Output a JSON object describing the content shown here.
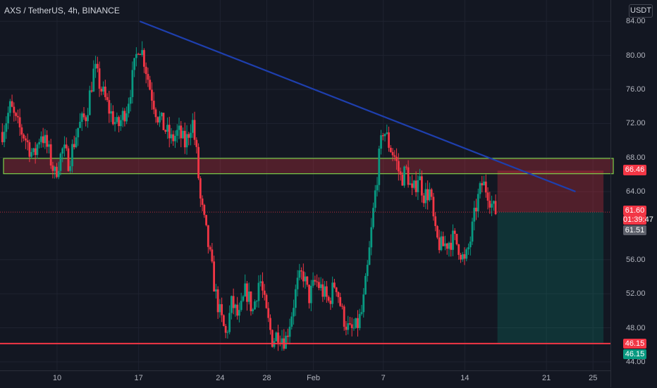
{
  "header": {
    "title": "AXS / TetherUS, 4h, BINANCE",
    "currency_badge": "USDT"
  },
  "chart_data": {
    "type": "candlestick",
    "symbol": "AXS / TetherUS",
    "timeframe": "4h",
    "exchange": "BINANCE",
    "y_ticks": [
      44,
      48,
      52,
      56,
      64,
      68,
      72,
      76,
      80,
      84
    ],
    "y_tick_labels": [
      "44.00",
      "48.00",
      "52.00",
      "56.00",
      "64.00",
      "68.00",
      "72.00",
      "76.00",
      "80.00",
      "84.00"
    ],
    "ylim": [
      43,
      86.5
    ],
    "x_ticks": [
      {
        "label": "10",
        "day": 10
      },
      {
        "label": "17",
        "day": 17
      },
      {
        "label": "24",
        "day": 24
      },
      {
        "label": "28",
        "day": 28
      },
      {
        "label": "Feb",
        "day": 32
      },
      {
        "label": "7",
        "day": 38
      },
      {
        "label": "14",
        "day": 45
      },
      {
        "label": "21",
        "day": 52
      },
      {
        "label": "25",
        "day": 56
      }
    ],
    "xlim": [
      5.1,
      57.5
    ],
    "price_path": [
      [
        5.3,
        71.0
      ],
      [
        6.0,
        74.0
      ],
      [
        6.5,
        72.0
      ],
      [
        7.2,
        70.5
      ],
      [
        8.0,
        68.0
      ],
      [
        8.6,
        71.0
      ],
      [
        9.2,
        69.0
      ],
      [
        9.8,
        66.0
      ],
      [
        10.5,
        69.0
      ],
      [
        11.0,
        67.5
      ],
      [
        11.8,
        71.5
      ],
      [
        12.5,
        73.0
      ],
      [
        13.2,
        78.5
      ],
      [
        13.8,
        76.0
      ],
      [
        14.5,
        73.5
      ],
      [
        15.2,
        71.5
      ],
      [
        16.0,
        74.0
      ],
      [
        16.5,
        77.5
      ],
      [
        17.0,
        81.5
      ],
      [
        17.4,
        80.0
      ],
      [
        18.0,
        76.0
      ],
      [
        18.6,
        73.0
      ],
      [
        19.2,
        71.5
      ],
      [
        19.8,
        70.0
      ],
      [
        20.4,
        71.0
      ],
      [
        21.0,
        69.5
      ],
      [
        21.6,
        72.5
      ],
      [
        22.0,
        68.0
      ],
      [
        22.3,
        63.0
      ],
      [
        23.0,
        57.5
      ],
      [
        23.6,
        52.0
      ],
      [
        24.0,
        49.5
      ],
      [
        24.5,
        47.0
      ],
      [
        25.0,
        51.0
      ],
      [
        25.6,
        49.0
      ],
      [
        26.2,
        52.5
      ],
      [
        26.8,
        50.0
      ],
      [
        27.4,
        54.0
      ],
      [
        27.9,
        50.0
      ],
      [
        28.5,
        46.5
      ],
      [
        29.0,
        47.5
      ],
      [
        29.6,
        46.5
      ],
      [
        30.1,
        49.5
      ],
      [
        30.6,
        53.0
      ],
      [
        31.1,
        54.5
      ],
      [
        31.6,
        51.5
      ],
      [
        32.2,
        53.5
      ],
      [
        32.7,
        52.5
      ],
      [
        33.3,
        51.0
      ],
      [
        33.9,
        53.5
      ],
      [
        34.5,
        49.5
      ],
      [
        35.1,
        47.5
      ],
      [
        35.7,
        48.0
      ],
      [
        36.2,
        50.0
      ],
      [
        36.7,
        55.5
      ],
      [
        37.2,
        62.5
      ],
      [
        37.6,
        67.5
      ],
      [
        38.0,
        71.5
      ],
      [
        38.5,
        69.5
      ],
      [
        39.0,
        68.0
      ],
      [
        39.5,
        65.5
      ],
      [
        40.0,
        66.5
      ],
      [
        40.5,
        63.5
      ],
      [
        41.0,
        66.0
      ],
      [
        41.5,
        63.5
      ],
      [
        42.0,
        64.0
      ],
      [
        42.5,
        58.5
      ],
      [
        43.0,
        57.5
      ],
      [
        43.5,
        58.0
      ],
      [
        44.0,
        58.5
      ],
      [
        44.5,
        57.5
      ],
      [
        45.0,
        55.5
      ],
      [
        45.5,
        58.5
      ],
      [
        46.0,
        62.5
      ],
      [
        46.5,
        65.0
      ],
      [
        47.0,
        64.0
      ],
      [
        47.4,
        62.0
      ],
      [
        47.7,
        61.6
      ]
    ],
    "current_price": 61.6,
    "countdown": "01:39:47",
    "other_price": 61.51,
    "annotations": {
      "resistance_zone": {
        "from": 66.1,
        "to": 67.9
      },
      "support_line": 46.15,
      "trendline": [
        [
          17.1,
          84.0
        ],
        [
          54.5,
          64.0
        ]
      ],
      "position": {
        "entry": 61.6,
        "stop": 66.46,
        "target": 46.15,
        "x_from": 47.8,
        "x_to": 56.9
      }
    },
    "price_labels": [
      {
        "text": "66.46",
        "value": 66.46,
        "color": "#f23645"
      },
      {
        "text": "61.60",
        "value": 61.6,
        "color": "#f23645"
      },
      {
        "text": "01:39:47",
        "value": 61.6,
        "color": "#f23645"
      },
      {
        "text": "61.51",
        "value": 61.51,
        "color": "#5d606b"
      },
      {
        "text": "46.15",
        "value": 46.15,
        "color": "#f23645"
      },
      {
        "text": "46.15",
        "value": 46.15,
        "color": "#089981"
      }
    ]
  }
}
